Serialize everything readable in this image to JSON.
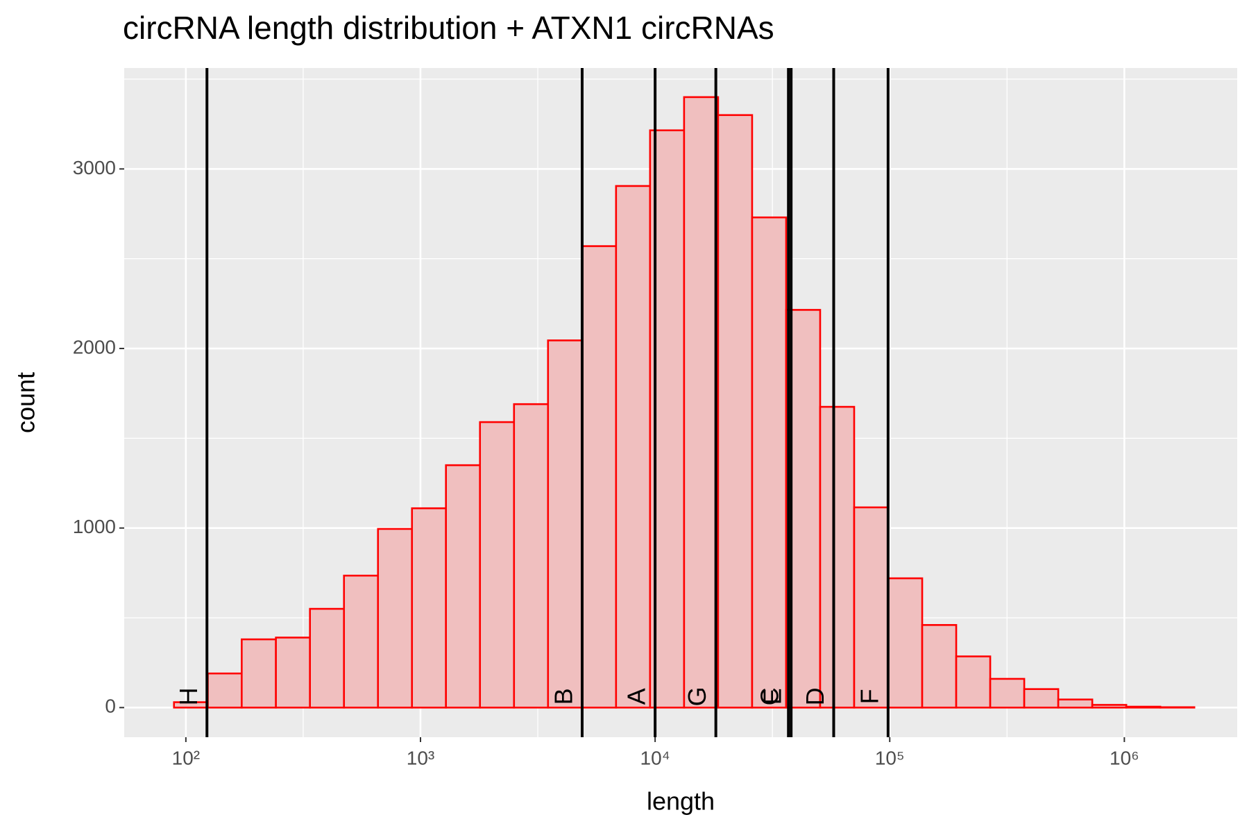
{
  "chart_data": {
    "type": "histogram",
    "title": "circRNA length distribution + ATXN1 circRNAs",
    "x_label": "length",
    "y_label": "count",
    "bins": [
      89,
      124,
      173,
      242,
      338,
      472,
      659,
      920,
      1284,
      1793,
      2504,
      3496,
      4881,
      6816,
      9517,
      13289,
      18556,
      25910,
      36178,
      50516,
      70537,
      98491,
      137524,
      192027,
      268130,
      374394,
      522773,
      729958,
      1019252,
      1423200,
      1987263
    ],
    "values": [
      30,
      190,
      380,
      390,
      550,
      735,
      995,
      1110,
      1350,
      1590,
      1690,
      2045,
      2570,
      2905,
      3215,
      3400,
      3300,
      2730,
      2215,
      1675,
      1115,
      720,
      460,
      285,
      160,
      103,
      45,
      15,
      5,
      2
    ],
    "color": "#ff0000",
    "fill": "#f0bfbf",
    "vlines": [
      {
        "label": "H",
        "value": 123
      },
      {
        "label": "B",
        "value": 4887
      },
      {
        "label": "A",
        "value": 10000
      },
      {
        "label": "G",
        "value": 18150
      },
      {
        "label": "C",
        "value": 37000
      },
      {
        "label": "E",
        "value": 38000
      },
      {
        "label": "D",
        "value": 57700
      },
      {
        "label": "F",
        "value": 98400
      }
    ],
    "vline_color": "#000000",
    "x_scale": "log",
    "xlim": [
      54.6,
      3027000
    ],
    "ylim": [
      -165,
      3562
    ],
    "xticks": [
      {
        "value": 100,
        "label": "10²"
      },
      {
        "value": 1000,
        "label": "10³"
      },
      {
        "value": 10000,
        "label": "10⁴"
      },
      {
        "value": 100000,
        "label": "10⁵"
      },
      {
        "value": 1000000,
        "label": "10⁶"
      }
    ],
    "yticks": [
      0,
      1000,
      2000,
      3000
    ],
    "xminor": [
      316.2,
      3162,
      31623,
      316228
    ],
    "yminor": [
      500,
      1500,
      2500,
      3500
    ],
    "grid": true
  }
}
